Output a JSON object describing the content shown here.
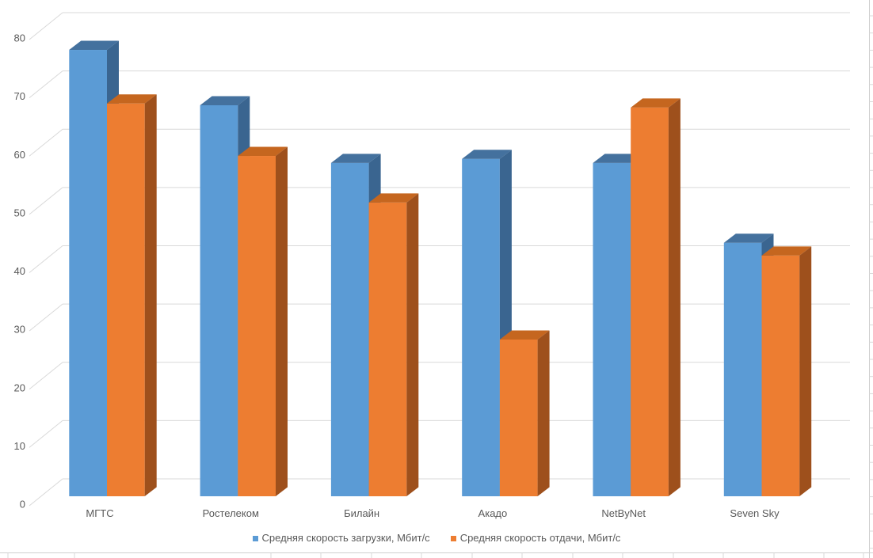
{
  "chart_data": {
    "type": "bar",
    "variant": "3d-clustered-column",
    "title": "",
    "xlabel": "",
    "ylabel": "",
    "categories": [
      "МГТС",
      "Ростелеком",
      "Билайн",
      "Акадо",
      "NetByNet",
      "Seven Sky"
    ],
    "series": [
      {
        "name": "Средняя скорость загрузки, Мбит/с",
        "values": [
          76.6,
          67.1,
          57.2,
          57.9,
          57.2,
          43.5
        ],
        "color_front": "#5B9BD5",
        "color_top": "#44719E",
        "color_side": "#3A6590"
      },
      {
        "name": "Средняя скорость отдачи, Мбит/с",
        "values": [
          67.4,
          58.4,
          50.4,
          26.9,
          66.7,
          41.3
        ],
        "color_front": "#ED7D31",
        "color_top": "#C5661F",
        "color_side": "#9E501C"
      }
    ],
    "ylim": [
      0,
      80
    ],
    "yticks": [
      0,
      10,
      20,
      30,
      40,
      50,
      60,
      70,
      80
    ],
    "grid": true,
    "legend_position": "bottom",
    "axis_text_color": "#595959",
    "gridline_color": "#D9D9D9"
  },
  "worksheet": {
    "frame_line_color": "#CFCFCF",
    "cell_line_color": "#D9D9D9"
  }
}
